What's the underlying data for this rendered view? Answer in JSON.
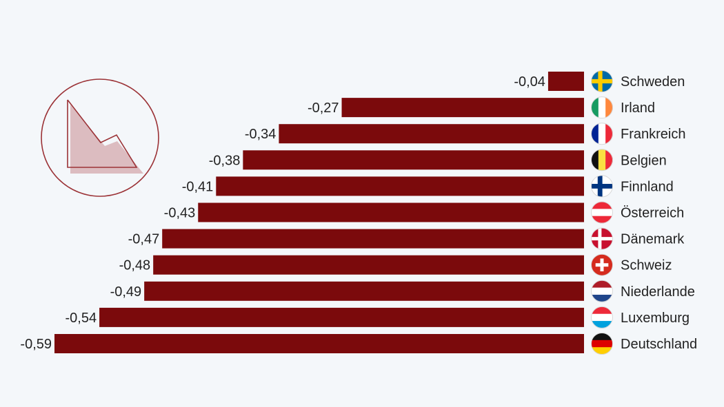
{
  "colors": {
    "background": "#f4f7fa",
    "bar": "#7b0a0c",
    "text": "#222222",
    "icon_stroke": "#9b3236",
    "icon_fill": "#dcbcc0"
  },
  "decoration": {
    "icon": "area-chart-icon"
  },
  "chart_data": {
    "type": "bar",
    "orientation": "horizontal",
    "title": "",
    "xlabel": "",
    "ylabel": "",
    "grid": false,
    "legend": "none",
    "xlim": [
      -0.59,
      0
    ],
    "categories": [
      "Schweden",
      "Irland",
      "Frankreich",
      "Belgien",
      "Finnland",
      "Österreich",
      "Dänemark",
      "Schweiz",
      "Niederlande",
      "Luxemburg",
      "Deutschland"
    ],
    "values": [
      -0.04,
      -0.27,
      -0.34,
      -0.38,
      -0.41,
      -0.43,
      -0.47,
      -0.48,
      -0.49,
      -0.54,
      -0.59
    ],
    "value_labels": [
      "-0,04",
      "-0,27",
      "-0,34",
      "-0,38",
      "-0,41",
      "-0,43",
      "-0,47",
      "-0,48",
      "-0,49",
      "-0,54",
      "-0,59"
    ],
    "flags": [
      "sweden-flag-icon",
      "ireland-flag-icon",
      "france-flag-icon",
      "belgium-flag-icon",
      "finland-flag-icon",
      "austria-flag-icon",
      "denmark-flag-icon",
      "switzerland-flag-icon",
      "netherlands-flag-icon",
      "luxembourg-flag-icon",
      "germany-flag-icon"
    ]
  }
}
